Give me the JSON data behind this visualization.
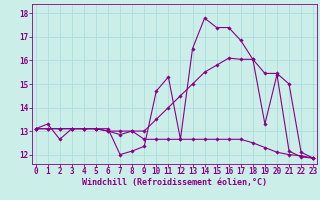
{
  "bg_color": "#cceee8",
  "line_color": "#880088",
  "grid_color": "#aadddd",
  "xlabel": "Windchill (Refroidissement éolien,°C)",
  "xlabel_fontsize": 6.0,
  "tick_fontsize": 5.5,
  "yticks": [
    12,
    13,
    14,
    15,
    16,
    17,
    18
  ],
  "xticks": [
    0,
    1,
    2,
    3,
    4,
    5,
    6,
    7,
    8,
    9,
    10,
    11,
    12,
    13,
    14,
    15,
    16,
    17,
    18,
    19,
    20,
    21,
    22,
    23
  ],
  "xlim": [
    -0.3,
    23.3
  ],
  "ylim": [
    11.6,
    18.4
  ],
  "series": [
    [
      13.1,
      13.3,
      12.65,
      13.1,
      13.1,
      13.1,
      13.1,
      12.0,
      12.15,
      12.35,
      14.7,
      15.3,
      12.65,
      16.5,
      17.8,
      17.4,
      17.4,
      16.85,
      16.05,
      13.3,
      15.4,
      12.15,
      11.9,
      11.85
    ],
    [
      13.1,
      13.1,
      13.1,
      13.1,
      13.1,
      13.1,
      13.0,
      12.85,
      13.0,
      12.65,
      12.65,
      12.65,
      12.65,
      12.65,
      12.65,
      12.65,
      12.65,
      12.65,
      12.5,
      12.3,
      12.1,
      12.0,
      11.95,
      11.85
    ],
    [
      13.1,
      13.1,
      13.1,
      13.1,
      13.1,
      13.1,
      13.0,
      13.0,
      13.0,
      13.0,
      13.5,
      14.0,
      14.5,
      15.0,
      15.5,
      15.8,
      16.1,
      16.05,
      16.05,
      15.45,
      15.45,
      15.0,
      12.1,
      11.85
    ]
  ]
}
